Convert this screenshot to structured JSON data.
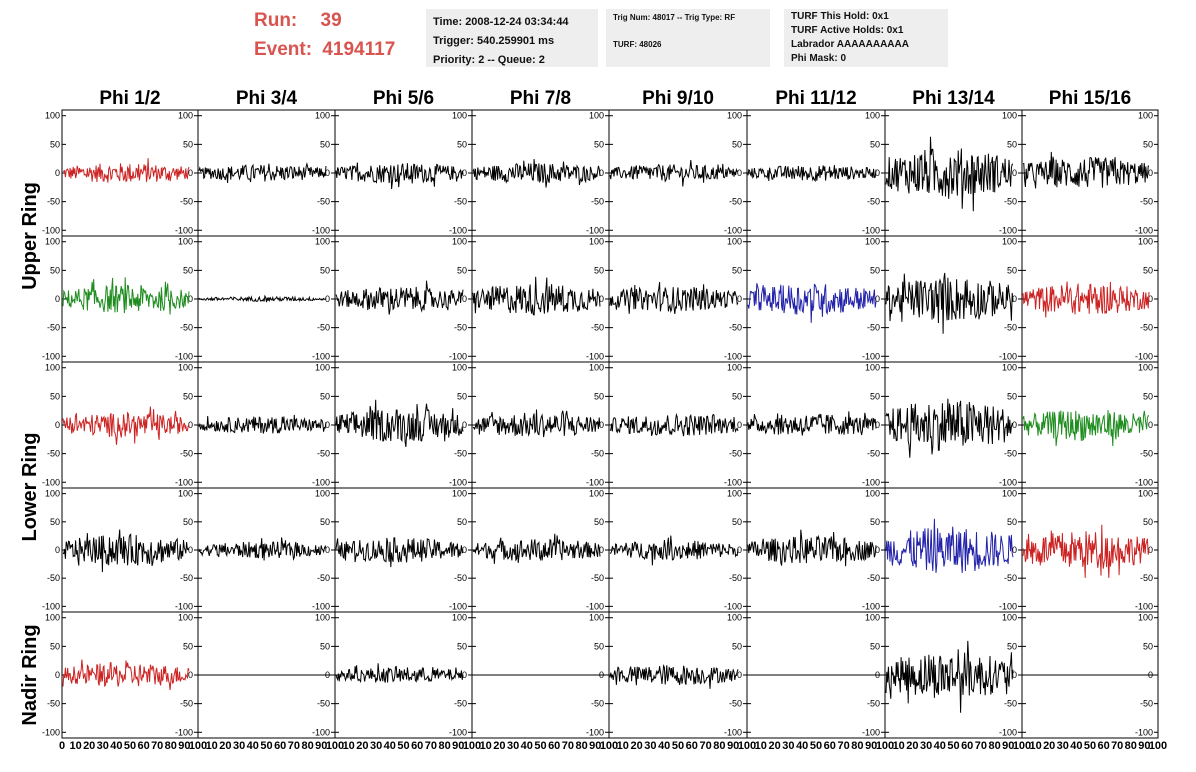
{
  "header": {
    "run_label": "Run:",
    "run_value": "39",
    "event_label": "Event:",
    "event_value": "4194117",
    "box1": [
      "Time: 2008-12-24 03:34:44",
      "Trigger: 540.259901 ms",
      "Priority: 2 -- Queue: 2"
    ],
    "box2_line1": "Trig Num: 48017 -- Trig Type: RF",
    "box2_line2": "TURF: 48026",
    "box3": [
      "TURF This Hold: 0x1",
      "TURF Active Holds: 0x1",
      "Labrador AAAAAAAAAA",
      "Phi Mask: 0"
    ]
  },
  "colors": {
    "red": "#cc2222",
    "green": "#1e8c1e",
    "blue": "#2222aa",
    "black": "#000000",
    "header_red": "#d9534f",
    "box_bg": "#eeeeee"
  },
  "chart_data": {
    "type": "line",
    "columns": [
      "Phi 1/2",
      "Phi 3/4",
      "Phi 5/6",
      "Phi 7/8",
      "Phi 9/10",
      "Phi 11/12",
      "Phi 13/14",
      "Phi 15/16"
    ],
    "ring_labels": [
      {
        "text": "Upper Ring",
        "rows": [
          0,
          1
        ]
      },
      {
        "text": "Lower Ring",
        "rows": [
          2,
          3
        ]
      },
      {
        "text": "Nadir Ring",
        "rows": [
          4,
          4
        ]
      }
    ],
    "yticks_small": [
      "100",
      "50",
      "0",
      "-50",
      "-100"
    ],
    "yticks_nadir": [
      "100",
      "50",
      "0",
      "-50",
      "-100"
    ],
    "xticks": [
      "0",
      "10",
      "20",
      "30",
      "40",
      "50",
      "60",
      "70",
      "80",
      "90",
      "100"
    ],
    "xlim": [
      0,
      100
    ],
    "ylim": [
      -110,
      110
    ],
    "grid": false,
    "panels": [
      [
        {
          "color": "red",
          "amp": 18
        },
        {
          "color": "black",
          "amp": 15
        },
        {
          "color": "black",
          "amp": 18
        },
        {
          "color": "black",
          "amp": 18
        },
        {
          "color": "black",
          "amp": 15
        },
        {
          "color": "black",
          "amp": 14
        },
        {
          "color": "black",
          "amp": 45
        },
        {
          "color": "black",
          "amp": 28
        }
      ],
      [
        {
          "color": "green",
          "amp": 25
        },
        {
          "color": "black",
          "amp": 4
        },
        {
          "color": "black",
          "amp": 22
        },
        {
          "color": "black",
          "amp": 28
        },
        {
          "color": "black",
          "amp": 22
        },
        {
          "color": "blue",
          "amp": 28
        },
        {
          "color": "black",
          "amp": 40
        },
        {
          "color": "red",
          "amp": 28
        }
      ],
      [
        {
          "color": "red",
          "amp": 22
        },
        {
          "color": "black",
          "amp": 15
        },
        {
          "color": "black",
          "amp": 30
        },
        {
          "color": "black",
          "amp": 22
        },
        {
          "color": "black",
          "amp": 20
        },
        {
          "color": "black",
          "amp": 20
        },
        {
          "color": "black",
          "amp": 45
        },
        {
          "color": "green",
          "amp": 28
        }
      ],
      [
        {
          "color": "black",
          "amp": 28
        },
        {
          "color": "black",
          "amp": 15
        },
        {
          "color": "black",
          "amp": 22
        },
        {
          "color": "black",
          "amp": 20
        },
        {
          "color": "black",
          "amp": 18
        },
        {
          "color": "black",
          "amp": 25
        },
        {
          "color": "blue",
          "amp": 42
        },
        {
          "color": "red",
          "amp": 35
        }
      ],
      [
        {
          "color": "red",
          "amp": 22
        },
        {
          "color": "black",
          "amp": 0
        },
        {
          "color": "black",
          "amp": 14
        },
        {
          "color": "black",
          "amp": 0
        },
        {
          "color": "black",
          "amp": 18
        },
        {
          "color": "black",
          "amp": 0
        },
        {
          "color": "black",
          "amp": 42
        },
        {
          "color": "black",
          "amp": 0
        }
      ]
    ]
  }
}
